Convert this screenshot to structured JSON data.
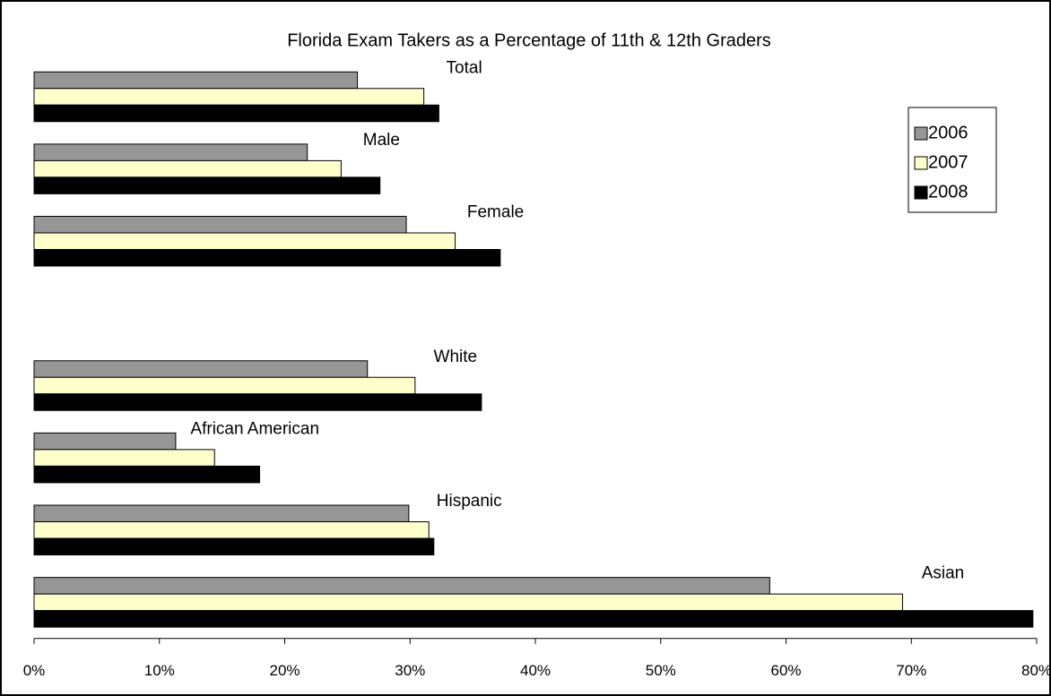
{
  "chart_data": {
    "type": "barh",
    "title": "Florida Exam Takers as a Percentage of 11th & 12th Graders",
    "categories": [
      "Total",
      "Male",
      "Female",
      null,
      "White",
      "African American",
      "Hispanic",
      "Asian"
    ],
    "series": [
      {
        "name": "2006",
        "color": "#969696",
        "values": [
          25.8,
          21.8,
          29.7,
          null,
          26.6,
          11.3,
          29.9,
          58.7
        ]
      },
      {
        "name": "2007",
        "color": "#ffffcc",
        "values": [
          31.1,
          24.5,
          33.6,
          null,
          30.4,
          14.4,
          31.5,
          69.3
        ]
      },
      {
        "name": "2008",
        "color": "#000000",
        "values": [
          32.3,
          27.6,
          37.2,
          null,
          35.7,
          18.0,
          31.9,
          79.7
        ]
      }
    ],
    "xlim": [
      0,
      80
    ],
    "xticks": [
      {
        "value": 0,
        "label": "0%"
      },
      {
        "value": 10,
        "label": "10%"
      },
      {
        "value": 20,
        "label": "20%"
      },
      {
        "value": 30,
        "label": "30%"
      },
      {
        "value": 40,
        "label": "40%"
      },
      {
        "value": 50,
        "label": "50%"
      },
      {
        "value": 60,
        "label": "60%"
      },
      {
        "value": 70,
        "label": "70%"
      },
      {
        "value": 80,
        "label": "80%"
      }
    ],
    "legend": "upper right"
  }
}
